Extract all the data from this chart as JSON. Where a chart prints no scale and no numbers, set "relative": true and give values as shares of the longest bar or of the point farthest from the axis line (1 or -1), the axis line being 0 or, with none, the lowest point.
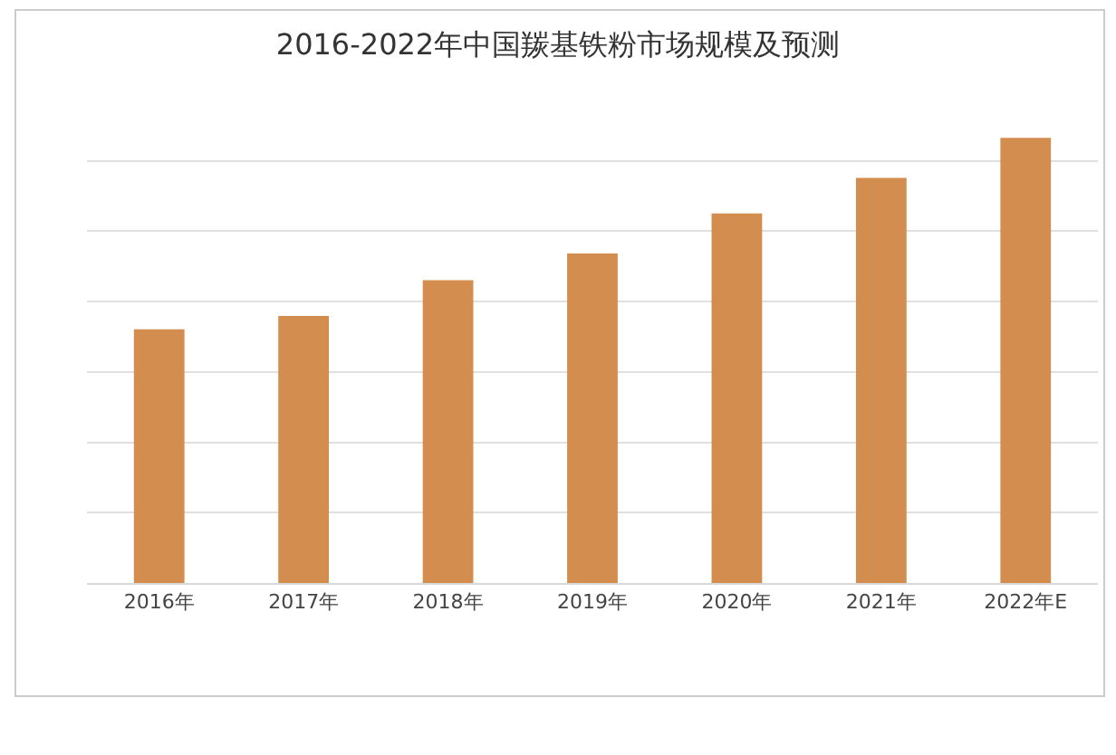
{
  "chart_data": {
    "type": "bar",
    "title": "2016-2022年中国羰基铁粉市场规模及预测",
    "categories": [
      "2016年",
      "2017年",
      "2018年",
      "2019年",
      "2020年",
      "2021年",
      "2022年E"
    ],
    "values": [
      0.57,
      0.6,
      0.68,
      0.74,
      0.83,
      0.91,
      1
    ],
    "color": "#d38d4f",
    "relative": true,
    "grid": "y"
  }
}
